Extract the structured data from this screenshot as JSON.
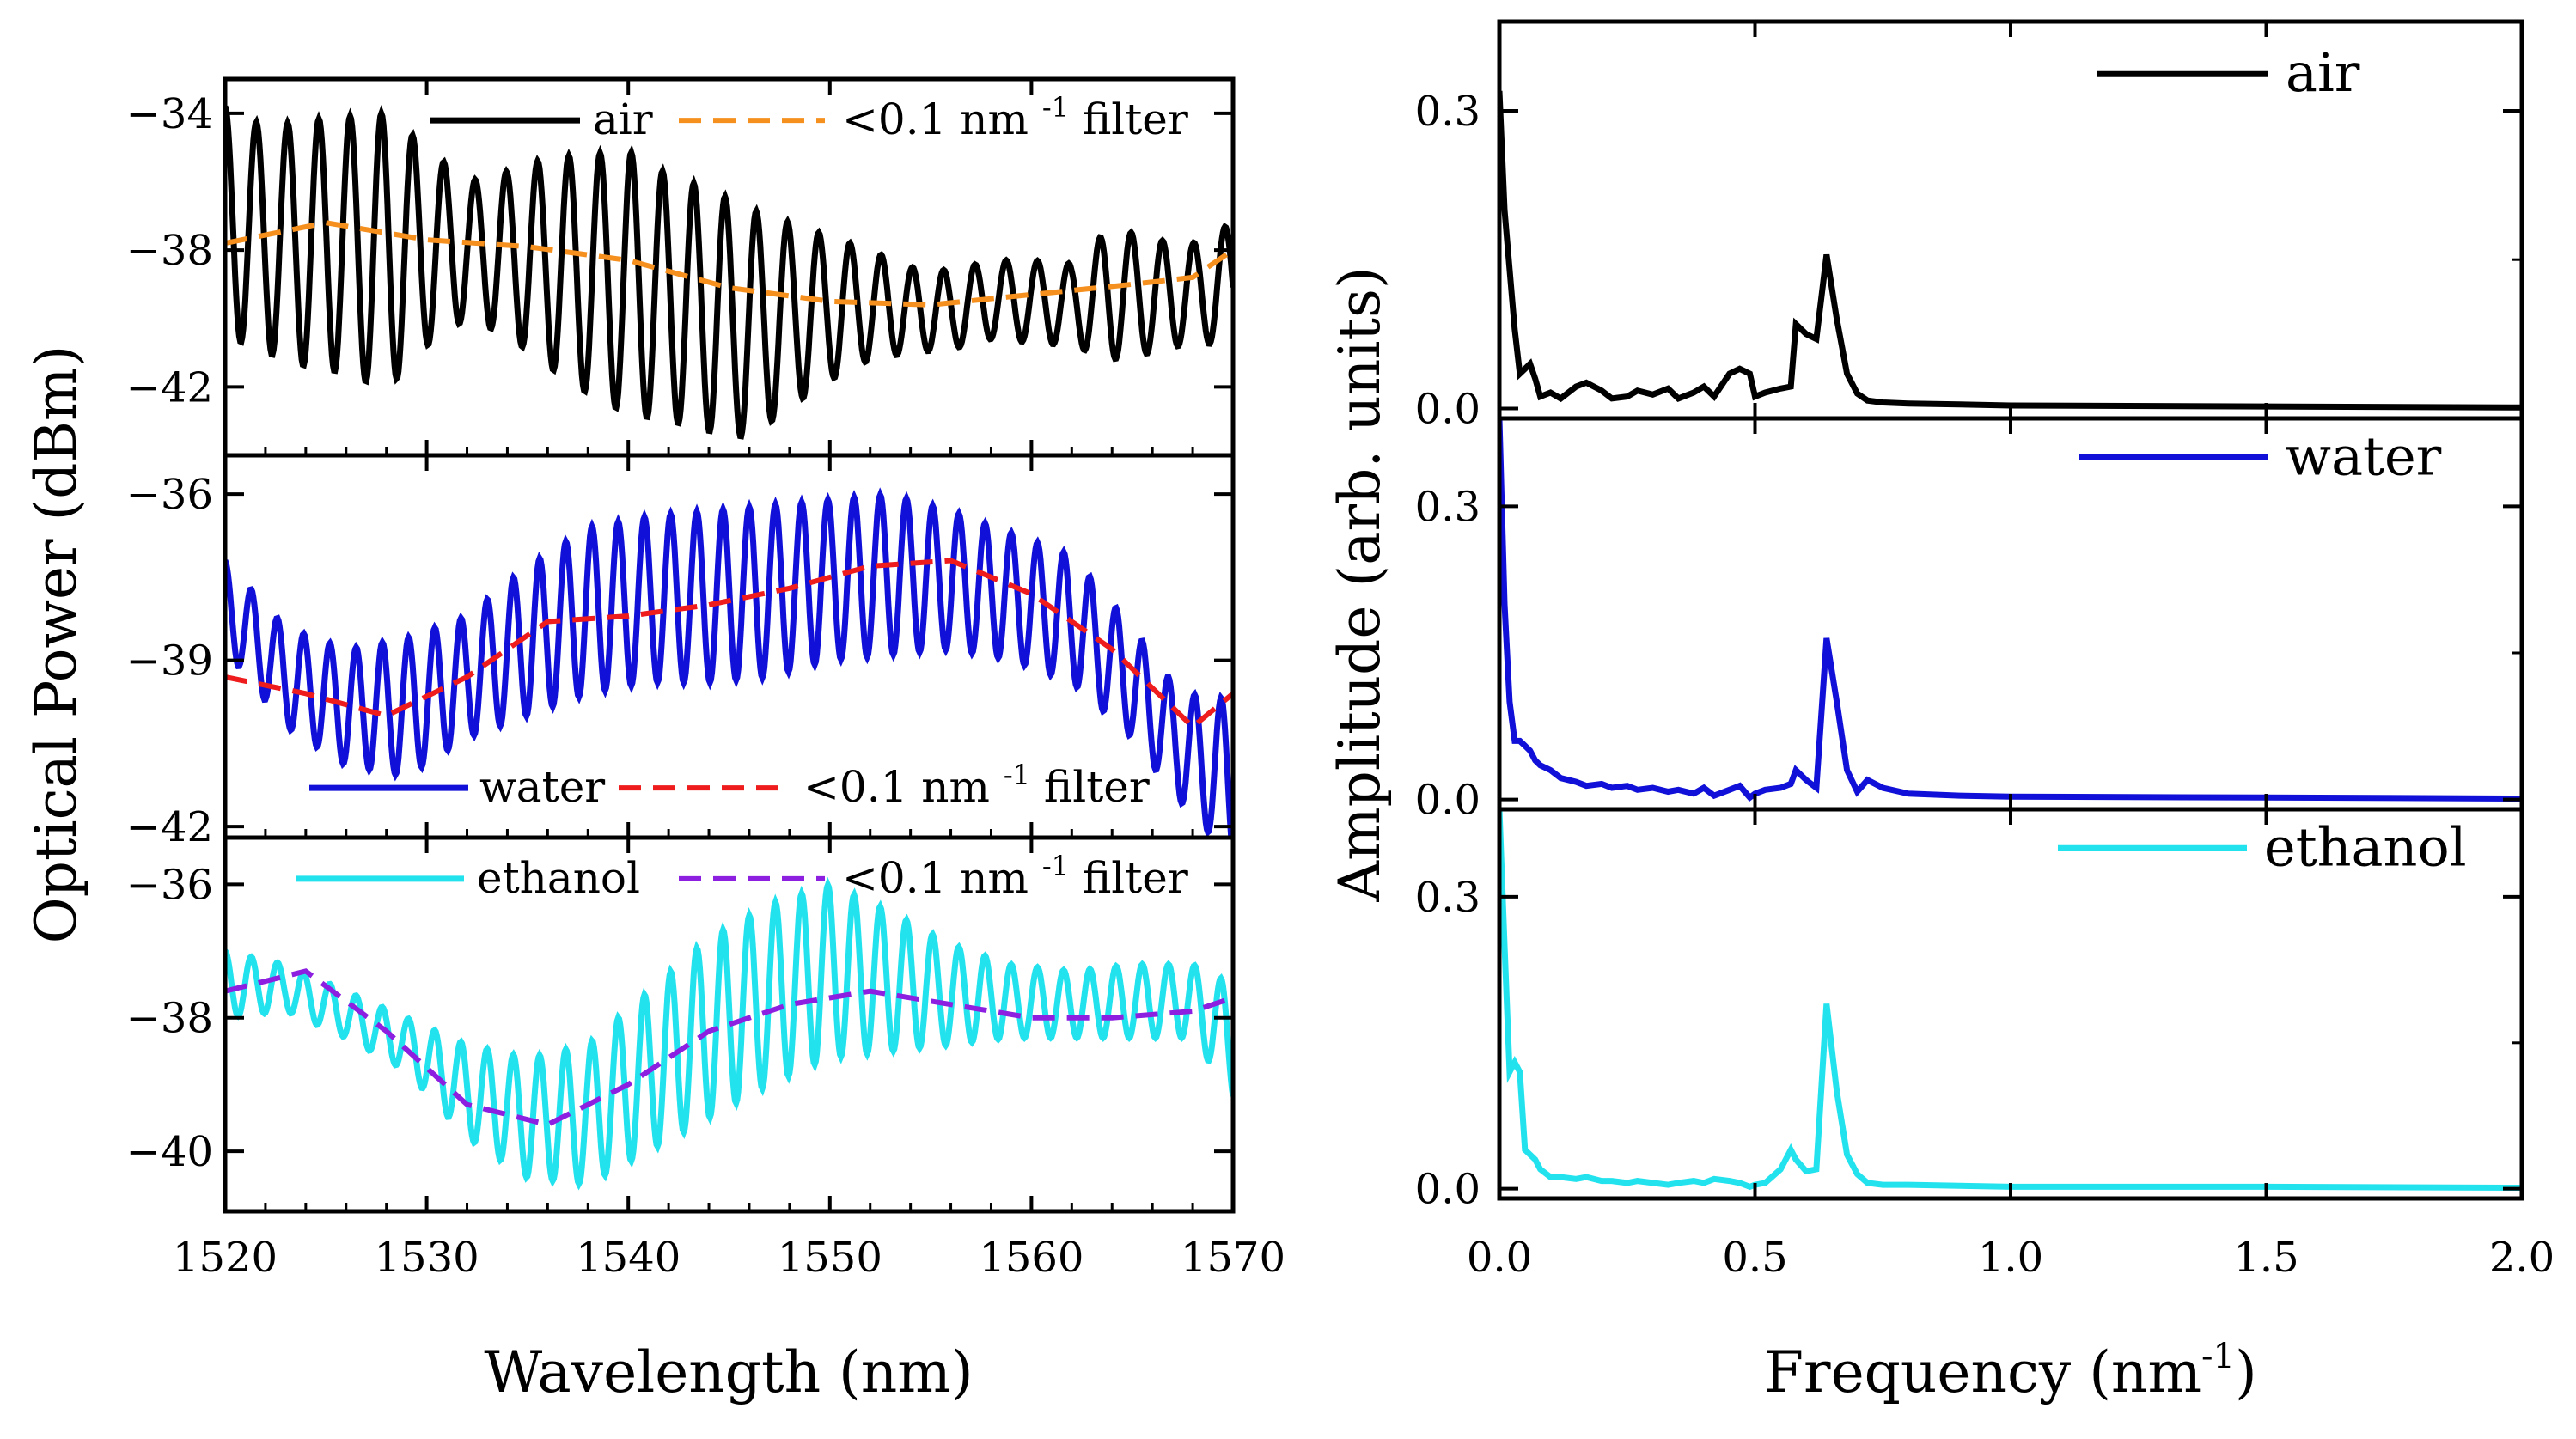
{
  "chart_data": [
    {
      "type": "line",
      "title": "",
      "xlabel": "Wavelength (nm)",
      "ylabel": "Optical Power (dBm)",
      "xlim": [
        1520,
        1570
      ],
      "x_ticks": [
        "1520",
        "1530",
        "1540",
        "1550",
        "1560",
        "1570"
      ],
      "filter_label": "<0.1 nm",
      "filter_sup": "-1",
      "filter_suffix": " filter",
      "panels": [
        {
          "name": "air",
          "color": "#000000",
          "filter_color": "#f5901e",
          "ylim": [
            -44,
            -33
          ],
          "y_ticks": [
            "-34",
            "-38",
            "-42"
          ],
          "y_tick_values": [
            -34,
            -38,
            -42
          ],
          "series": [
            {
              "name": "air",
              "style": "solid",
              "wavelength_nm": [
                1520,
                1522,
                1524,
                1526,
                1528,
                1530,
                1532,
                1534,
                1536,
                1538,
                1540,
                1542,
                1544,
                1546,
                1548,
                1550,
                1552,
                1554,
                1556,
                1558,
                1560,
                1562,
                1564,
                1566,
                1568,
                1570
              ],
              "upper_envelope": [
                -33.8,
                -34.4,
                -34.2,
                -34.1,
                -34.0,
                -35.0,
                -36.0,
                -35.7,
                -35.3,
                -35.2,
                -35.1,
                -35.8,
                -36.2,
                -36.8,
                -37.2,
                -37.6,
                -38.0,
                -38.5,
                -38.6,
                -38.3,
                -38.3,
                -38.4,
                -37.3,
                -37.7,
                -37.8,
                -37.2
              ],
              "lower_envelope": [
                -40.5,
                -41.0,
                -41.4,
                -41.6,
                -42.1,
                -40.8,
                -40.0,
                -40.5,
                -41.4,
                -42.2,
                -42.8,
                -43.0,
                -43.3,
                -43.5,
                -42.6,
                -41.8,
                -41.2,
                -41.0,
                -40.9,
                -40.6,
                -40.7,
                -40.8,
                -41.2,
                -41.0,
                -40.7,
                -40.8
              ],
              "period_nm": 1.55
            },
            {
              "name": "<0.1 nm-1 filter",
              "style": "dashed",
              "wavelength_nm": [
                1520,
                1525,
                1530,
                1535,
                1540,
                1545,
                1550,
                1555,
                1560,
                1565,
                1568,
                1570
              ],
              "values": [
                -37.8,
                -37.2,
                -37.7,
                -37.9,
                -38.3,
                -39.1,
                -39.5,
                -39.6,
                -39.3,
                -39.0,
                -38.8,
                -38.0
              ]
            }
          ]
        },
        {
          "name": "water",
          "color": "#1010d8",
          "filter_color": "#ee1c1c",
          "ylim": [
            -42.2,
            -35.3
          ],
          "y_ticks": [
            "-36",
            "-39",
            "-42"
          ],
          "y_tick_values": [
            -36,
            -39,
            -42
          ],
          "series": [
            {
              "name": "water",
              "style": "solid",
              "wavelength_nm": [
                1520,
                1523,
                1526,
                1529,
                1532,
                1535,
                1538,
                1541,
                1544,
                1547,
                1550,
                1553,
                1556,
                1559,
                1562,
                1565,
                1567,
                1569,
                1570
              ],
              "upper_envelope": [
                -37.2,
                -38.4,
                -38.8,
                -38.6,
                -38.2,
                -37.3,
                -36.6,
                -36.4,
                -36.3,
                -36.2,
                -36.1,
                -36.0,
                -36.3,
                -36.7,
                -37.1,
                -38.4,
                -39.4,
                -39.8,
                -39.5
              ],
              "lower_envelope": [
                -38.8,
                -40.2,
                -40.9,
                -41.1,
                -40.4,
                -40.0,
                -39.6,
                -39.4,
                -39.4,
                -39.3,
                -39.0,
                -38.9,
                -38.8,
                -39.0,
                -39.4,
                -40.4,
                -41.4,
                -42.2,
                -42.6
              ],
              "period_nm": 1.3
            },
            {
              "name": "<0.1 nm-1 filter",
              "style": "dashed",
              "wavelength_nm": [
                1520,
                1524,
                1528,
                1532,
                1536,
                1540,
                1544,
                1548,
                1552,
                1556,
                1560,
                1564,
                1568,
                1570
              ],
              "values": [
                -39.3,
                -39.6,
                -40.0,
                -39.3,
                -38.3,
                -38.2,
                -38.0,
                -37.7,
                -37.3,
                -37.2,
                -37.8,
                -38.8,
                -40.2,
                -39.6
              ]
            }
          ]
        },
        {
          "name": "ethanol",
          "color": "#22e2ee",
          "filter_color": "#8d1fe0",
          "ylim": [
            -40.9,
            -35.3
          ],
          "y_ticks": [
            "-36",
            "-38",
            "-40"
          ],
          "y_tick_values": [
            -36,
            -38,
            -40
          ],
          "series": [
            {
              "name": "ethanol",
              "style": "solid",
              "wavelength_nm": [
                1520,
                1523,
                1526,
                1529,
                1532,
                1535,
                1538,
                1541,
                1544,
                1547,
                1550,
                1553,
                1556,
                1559,
                1562,
                1565,
                1568,
                1570
              ],
              "upper_envelope": [
                -37.0,
                -37.2,
                -37.6,
                -38.0,
                -38.4,
                -38.6,
                -38.4,
                -37.6,
                -36.8,
                -36.3,
                -36.0,
                -36.4,
                -36.9,
                -37.2,
                -37.3,
                -37.2,
                -37.2,
                -37.5
              ],
              "lower_envelope": [
                -38.0,
                -37.9,
                -38.3,
                -38.8,
                -39.8,
                -40.4,
                -40.5,
                -40.0,
                -39.5,
                -39.0,
                -38.6,
                -38.5,
                -38.4,
                -38.3,
                -38.3,
                -38.3,
                -38.3,
                -39.2
              ],
              "period_nm": 1.3
            },
            {
              "name": "<0.1 nm-1 filter",
              "style": "dashed",
              "wavelength_nm": [
                1520,
                1524,
                1528,
                1532,
                1536,
                1540,
                1544,
                1548,
                1552,
                1556,
                1560,
                1564,
                1568,
                1570
              ],
              "values": [
                -37.6,
                -37.3,
                -38.2,
                -39.3,
                -39.6,
                -39.0,
                -38.2,
                -37.8,
                -37.6,
                -37.8,
                -38.0,
                -38.0,
                -37.9,
                -37.7
              ]
            }
          ]
        }
      ]
    },
    {
      "type": "line",
      "title": "",
      "xlabel": "Frequency (nm",
      "xlabel_sup": "-1",
      "xlabel_suffix": ")",
      "ylabel": "Amplitude (arb. units)",
      "xlim": [
        0.0,
        2.0
      ],
      "x_ticks": [
        "0.0",
        "0.5",
        "1.0",
        "1.5",
        "2.0"
      ],
      "x_tick_values": [
        0.0,
        0.5,
        1.0,
        1.5,
        2.0
      ],
      "panels": [
        {
          "name": "air",
          "color": "#000000",
          "ylim": [
            -0.01,
            0.39
          ],
          "y_ticks": [
            "0.0",
            "0.3"
          ],
          "y_tick_values": [
            0.0,
            0.3
          ],
          "x": [
            0.0,
            0.01,
            0.02,
            0.03,
            0.04,
            0.05,
            0.06,
            0.07,
            0.08,
            0.1,
            0.12,
            0.15,
            0.17,
            0.2,
            0.22,
            0.25,
            0.27,
            0.3,
            0.33,
            0.35,
            0.38,
            0.4,
            0.42,
            0.45,
            0.47,
            0.49,
            0.5,
            0.52,
            0.55,
            0.57,
            0.58,
            0.6,
            0.62,
            0.64,
            0.66,
            0.68,
            0.7,
            0.72,
            0.75,
            0.8,
            0.9,
            1.0,
            1.5,
            2.0
          ],
          "values": [
            0.32,
            0.2,
            0.14,
            0.08,
            0.035,
            0.04,
            0.045,
            0.03,
            0.012,
            0.016,
            0.01,
            0.022,
            0.026,
            0.018,
            0.01,
            0.012,
            0.018,
            0.014,
            0.02,
            0.01,
            0.016,
            0.022,
            0.012,
            0.035,
            0.04,
            0.035,
            0.012,
            0.016,
            0.02,
            0.022,
            0.085,
            0.075,
            0.07,
            0.155,
            0.09,
            0.035,
            0.015,
            0.008,
            0.006,
            0.005,
            0.004,
            0.003,
            0.002,
            0.001
          ]
        },
        {
          "name": "water",
          "color": "#1010d8",
          "ylim": [
            -0.01,
            0.39
          ],
          "y_ticks": [
            "0.0",
            "0.3"
          ],
          "y_tick_values": [
            0.0,
            0.3
          ],
          "x": [
            0.0,
            0.01,
            0.02,
            0.03,
            0.04,
            0.05,
            0.06,
            0.07,
            0.08,
            0.1,
            0.12,
            0.15,
            0.17,
            0.2,
            0.22,
            0.25,
            0.27,
            0.3,
            0.33,
            0.35,
            0.38,
            0.4,
            0.42,
            0.45,
            0.47,
            0.49,
            0.5,
            0.52,
            0.55,
            0.57,
            0.58,
            0.6,
            0.62,
            0.64,
            0.66,
            0.68,
            0.7,
            0.72,
            0.75,
            0.8,
            0.9,
            1.0,
            1.5,
            2.0
          ],
          "values": [
            0.39,
            0.2,
            0.1,
            0.06,
            0.06,
            0.055,
            0.05,
            0.04,
            0.035,
            0.03,
            0.022,
            0.018,
            0.014,
            0.016,
            0.012,
            0.014,
            0.01,
            0.012,
            0.008,
            0.01,
            0.006,
            0.012,
            0.004,
            0.01,
            0.014,
            0.002,
            0.006,
            0.01,
            0.012,
            0.016,
            0.03,
            0.02,
            0.012,
            0.165,
            0.1,
            0.03,
            0.008,
            0.02,
            0.012,
            0.006,
            0.004,
            0.003,
            0.002,
            0.001
          ]
        },
        {
          "name": "ethanol",
          "color": "#22e2ee",
          "ylim": [
            -0.01,
            0.39
          ],
          "y_ticks": [
            "0.0",
            "0.3"
          ],
          "y_tick_values": [
            0.0,
            0.3
          ],
          "x": [
            0.0,
            0.01,
            0.02,
            0.03,
            0.04,
            0.05,
            0.06,
            0.07,
            0.08,
            0.1,
            0.12,
            0.15,
            0.17,
            0.2,
            0.22,
            0.25,
            0.27,
            0.3,
            0.33,
            0.35,
            0.38,
            0.4,
            0.42,
            0.45,
            0.47,
            0.49,
            0.5,
            0.52,
            0.55,
            0.57,
            0.58,
            0.6,
            0.62,
            0.64,
            0.66,
            0.68,
            0.7,
            0.72,
            0.75,
            0.8,
            0.9,
            1.0,
            1.5,
            2.0
          ],
          "values": [
            0.39,
            0.25,
            0.12,
            0.13,
            0.12,
            0.04,
            0.035,
            0.03,
            0.02,
            0.012,
            0.012,
            0.01,
            0.012,
            0.008,
            0.008,
            0.006,
            0.008,
            0.006,
            0.004,
            0.006,
            0.008,
            0.006,
            0.01,
            0.008,
            0.006,
            0.002,
            0.004,
            0.006,
            0.02,
            0.04,
            0.03,
            0.018,
            0.02,
            0.19,
            0.1,
            0.035,
            0.015,
            0.006,
            0.004,
            0.004,
            0.003,
            0.002,
            0.002,
            0.001
          ]
        }
      ]
    }
  ]
}
